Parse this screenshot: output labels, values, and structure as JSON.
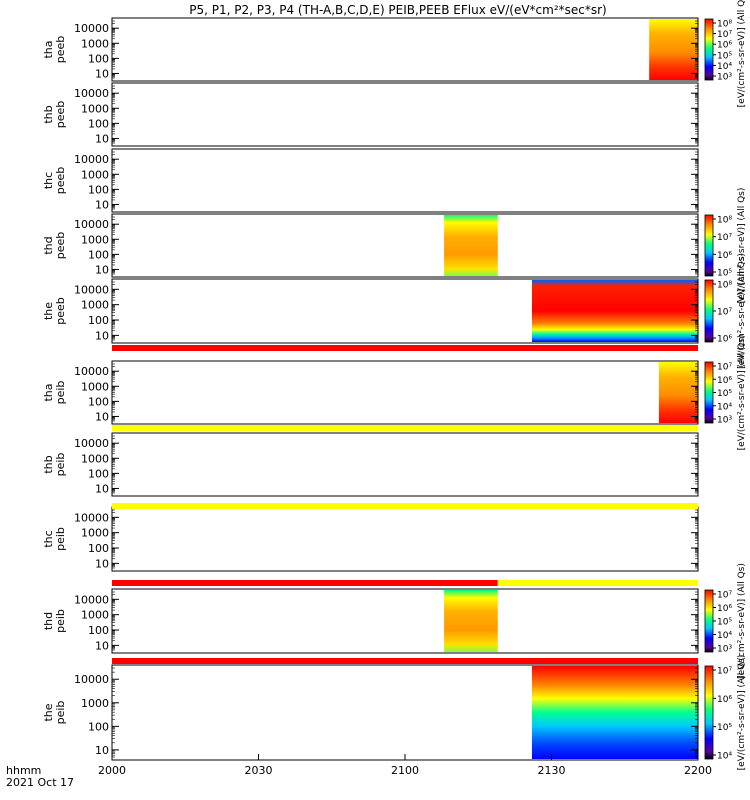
{
  "title": "P5, P1, P2, P3, P4 (TH-A,B,C,D,E) PEIB,PEEB EFlux eV/(eV*cm²*sec*sr)",
  "time_label": "hhmm",
  "date_label": "2021 Oct 17",
  "colors": {
    "red": "#ff0000",
    "orange": "#ff8c00",
    "yellow": "#ffff00",
    "green": "#00ff80",
    "cyan": "#00d0ff",
    "blue": "#0000ff",
    "black": "#000000"
  },
  "chart_data": {
    "type": "heatmap",
    "x_ticks": [
      "2000",
      "2030",
      "2100",
      "2130",
      "2200"
    ],
    "x_range_minutes": [
      0,
      120
    ],
    "y_scale": "log",
    "y_range": [
      5,
      30000
    ],
    "y_ticks": [
      "10",
      "100",
      "1000",
      "10000"
    ],
    "panels": [
      {
        "id": "tha-peeb",
        "label_lines": [
          "tha",
          "peeb"
        ],
        "data_blocks": [
          {
            "t_start": 110,
            "t_end": 120,
            "style": "hot"
          }
        ],
        "colorbar": {
          "ticks": [
            "10³",
            "10⁴",
            "10⁵",
            "10⁶",
            "10⁷",
            "10⁸"
          ],
          "label": "[eV/(cm²-s-sr-eV)] (All Qs)"
        }
      },
      {
        "id": "thb-peeb",
        "label_lines": [
          "thb",
          "peeb"
        ],
        "data_blocks": []
      },
      {
        "id": "thc-peeb",
        "label_lines": [
          "thc",
          "peeb"
        ],
        "data_blocks": []
      },
      {
        "id": "thd-peeb",
        "label_lines": [
          "thd",
          "peeb"
        ],
        "data_blocks": [
          {
            "t_start": 68,
            "t_end": 79,
            "style": "warm"
          }
        ],
        "colorbar": {
          "ticks": [
            "10⁵",
            "10⁶",
            "10⁷",
            "10⁸"
          ],
          "label": "[eV/(cm²-s-sr-eV)] (All Qs)"
        }
      },
      {
        "id": "the-peeb",
        "label_lines": [
          "the",
          "peeb"
        ],
        "data_blocks": [
          {
            "t_start": 86,
            "t_end": 120,
            "style": "intense"
          }
        ],
        "colorbar": {
          "ticks": [
            "10⁶",
            "10⁷",
            "10⁸"
          ],
          "label": "[eV/(cm²-s-sr-eV)] (All Qs)"
        }
      },
      {
        "id": "tha-peib",
        "label_lines": [
          "tha",
          "peib"
        ],
        "data_blocks": [
          {
            "t_start": 112,
            "t_end": 120,
            "style": "hot"
          }
        ],
        "colorbar": {
          "ticks": [
            "10³",
            "10⁴",
            "10⁵",
            "10⁶",
            "10⁷"
          ],
          "label": "[eV/(cm²-s-sr-eV)] (All Qs)"
        }
      },
      {
        "id": "thb-peib",
        "label_lines": [
          "thb",
          "peib"
        ],
        "data_blocks": []
      },
      {
        "id": "thc-peib",
        "label_lines": [
          "thc",
          "peib"
        ],
        "data_blocks": []
      },
      {
        "id": "thd-peib",
        "label_lines": [
          "thd",
          "peib"
        ],
        "data_blocks": [
          {
            "t_start": 68,
            "t_end": 79,
            "style": "warm"
          }
        ],
        "colorbar": {
          "ticks": [
            "10³",
            "10⁴",
            "10⁵",
            "10⁶",
            "10⁷"
          ],
          "label": "[eV/(cm²-s-sr-eV)] (All Qs)"
        }
      },
      {
        "id": "the-peib",
        "label_lines": [
          "the",
          "peib"
        ],
        "data_blocks": [
          {
            "t_start": 86,
            "t_end": 120,
            "style": "cool"
          }
        ],
        "colorbar": {
          "ticks": [
            "10⁴",
            "10⁵",
            "10⁶",
            "10⁷"
          ],
          "label": "[eV/(cm²-s-sr-eV)] (All Qs)"
        }
      }
    ],
    "status_bars": [
      {
        "after_panel": 4,
        "segments": [
          {
            "t_start": 0,
            "t_end": 120,
            "color": "red"
          }
        ]
      },
      {
        "after_panel": 5,
        "segments": [
          {
            "t_start": 0,
            "t_end": 120,
            "color": "yellow"
          }
        ]
      },
      {
        "after_panel": 6,
        "segments": [
          {
            "t_start": 0,
            "t_end": 120,
            "color": "yellow"
          }
        ]
      },
      {
        "after_panel": 7,
        "segments": [
          {
            "t_start": 0,
            "t_end": 79,
            "color": "red"
          },
          {
            "t_start": 79,
            "t_end": 120,
            "color": "yellow"
          }
        ]
      },
      {
        "after_panel": 8,
        "segments": [
          {
            "t_start": 0,
            "t_end": 120,
            "color": "red"
          }
        ]
      }
    ]
  }
}
